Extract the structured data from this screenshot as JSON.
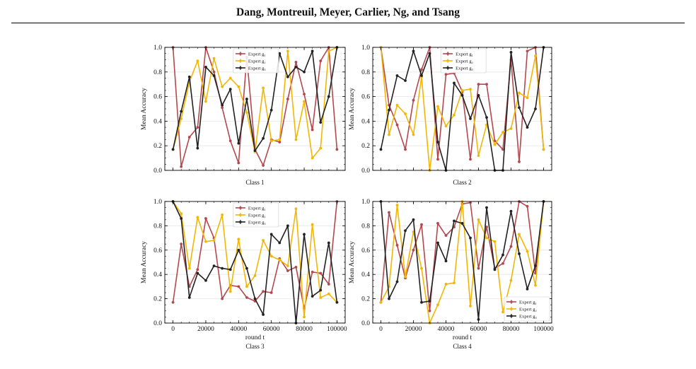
{
  "header": {
    "authors": "Dang, Montreuil, Meyer, Carlier, Ng, and Tsang"
  },
  "colors": {
    "g1": "#b5474e",
    "g2": "#f2b705",
    "g3": "#222222",
    "grid": "#e6e6e6"
  },
  "chart_data": [
    {
      "type": "line",
      "title": "Class 1",
      "xlabel": "",
      "ylabel": "Mean Accuracy",
      "xlim": [
        -5000,
        105000
      ],
      "ylim": [
        0,
        1
      ],
      "x_ticks": [
        0,
        20000,
        40000,
        60000,
        80000,
        100000
      ],
      "x_tick_labels": [
        "",
        "",
        "",
        "",
        "",
        ""
      ],
      "y_ticks": [
        0,
        0.2,
        0.4,
        0.6,
        0.8,
        1.0
      ],
      "y_tick_labels": [
        "0.0",
        "0.2",
        "0.4",
        "0.6",
        "0.8",
        "1.0"
      ],
      "grid": "horizontal",
      "legend": "top-center",
      "x": [
        0,
        5000,
        10000,
        15000,
        20000,
        25000,
        30000,
        35000,
        40000,
        45000,
        50000,
        55000,
        60000,
        65000,
        70000,
        75000,
        80000,
        85000,
        90000,
        95000,
        100000
      ],
      "series": [
        {
          "name": "Expert g₁",
          "color": "#b5474e",
          "values": [
            1.0,
            0.03,
            0.27,
            0.35,
            1.0,
            0.8,
            0.51,
            0.24,
            0.06,
            0.92,
            0.17,
            0.04,
            0.25,
            0.23,
            0.58,
            0.88,
            0.62,
            0.33,
            0.89,
            1.0,
            0.17
          ]
        },
        {
          "name": "Expert g₂",
          "color": "#f2b705",
          "values": [
            0.17,
            0.42,
            0.72,
            0.89,
            0.56,
            0.91,
            0.68,
            0.75,
            0.68,
            0.47,
            0.15,
            0.67,
            0.24,
            0.25,
            0.97,
            0.25,
            0.56,
            0.1,
            0.18,
            0.97,
            1.0
          ]
        },
        {
          "name": "Expert g₃",
          "color": "#222222",
          "values": [
            0.17,
            0.48,
            0.76,
            0.18,
            0.84,
            0.77,
            0.53,
            0.66,
            0.22,
            0.58,
            0.16,
            0.26,
            0.49,
            0.95,
            0.76,
            0.84,
            0.8,
            0.97,
            0.39,
            0.6,
            1.0
          ]
        }
      ]
    },
    {
      "type": "line",
      "title": "Class 2",
      "xlabel": "",
      "ylabel": "Mean Accuracy",
      "xlim": [
        -5000,
        105000
      ],
      "ylim": [
        0,
        1
      ],
      "x_ticks": [
        0,
        20000,
        40000,
        60000,
        80000,
        100000
      ],
      "x_tick_labels": [
        "",
        "",
        "",
        "",
        "",
        ""
      ],
      "y_ticks": [
        0,
        0.2,
        0.4,
        0.6,
        0.8,
        1.0
      ],
      "y_tick_labels": [
        "0.0",
        "0.2",
        "0.4",
        "0.6",
        "0.8",
        "1.0"
      ],
      "grid": "horizontal",
      "legend": "top-center",
      "x": [
        0,
        5000,
        10000,
        15000,
        20000,
        25000,
        30000,
        35000,
        40000,
        45000,
        50000,
        55000,
        60000,
        65000,
        70000,
        75000,
        80000,
        85000,
        90000,
        95000,
        100000
      ],
      "series": [
        {
          "name": "Expert g₁",
          "color": "#b5474e",
          "values": [
            1.0,
            0.53,
            0.37,
            0.17,
            0.57,
            0.82,
            1.0,
            0.09,
            0.78,
            0.79,
            0.64,
            0.09,
            0.7,
            0.7,
            0.24,
            0.17,
            0.9,
            0.07,
            0.97,
            1.0,
            0.17
          ]
        },
        {
          "name": "Expert g₂",
          "color": "#f2b705",
          "values": [
            1.0,
            0.29,
            0.53,
            0.46,
            0.29,
            0.76,
            0.0,
            0.52,
            0.36,
            0.45,
            0.65,
            0.66,
            0.12,
            0.37,
            0.21,
            0.31,
            0.34,
            0.63,
            0.59,
            0.93,
            0.17
          ]
        },
        {
          "name": "Expert g₃",
          "color": "#222222",
          "values": [
            0.17,
            0.49,
            0.77,
            0.73,
            0.97,
            0.77,
            0.95,
            0.23,
            0.0,
            0.71,
            0.61,
            0.42,
            0.61,
            0.43,
            0.0,
            0.0,
            0.96,
            0.51,
            0.35,
            0.5,
            1.0
          ]
        }
      ]
    },
    {
      "type": "line",
      "title": "Class 3",
      "xlabel": "round t",
      "ylabel": "Mean Accuracy",
      "xlim": [
        -5000,
        105000
      ],
      "ylim": [
        0,
        1
      ],
      "x_ticks": [
        0,
        20000,
        40000,
        60000,
        80000,
        100000
      ],
      "x_tick_labels": [
        "0",
        "20000",
        "40000",
        "60000",
        "80000",
        "100000"
      ],
      "y_ticks": [
        0,
        0.2,
        0.4,
        0.6,
        0.8,
        1.0
      ],
      "y_tick_labels": [
        "0.0",
        "0.2",
        "0.4",
        "0.6",
        "0.8",
        "1.0"
      ],
      "grid": "horizontal",
      "legend": "top-center",
      "x": [
        0,
        5000,
        10000,
        15000,
        20000,
        25000,
        30000,
        35000,
        40000,
        45000,
        50000,
        55000,
        60000,
        65000,
        70000,
        75000,
        80000,
        85000,
        90000,
        95000,
        100000
      ],
      "series": [
        {
          "name": "Expert g₁",
          "color": "#b5474e",
          "values": [
            0.17,
            0.65,
            0.3,
            0.44,
            0.86,
            0.7,
            0.2,
            0.31,
            0.3,
            0.21,
            0.18,
            0.26,
            0.25,
            0.53,
            0.43,
            0.46,
            0.12,
            0.42,
            0.41,
            0.32,
            1.0
          ]
        },
        {
          "name": "Expert g₂",
          "color": "#f2b705",
          "values": [
            1.0,
            0.9,
            0.45,
            0.87,
            0.67,
            0.68,
            0.89,
            0.26,
            0.69,
            0.3,
            0.39,
            0.68,
            0.55,
            0.52,
            0.47,
            0.94,
            0.05,
            0.81,
            0.21,
            0.24,
            0.17
          ]
        },
        {
          "name": "Expert g₃",
          "color": "#222222",
          "values": [
            1.0,
            0.86,
            0.21,
            0.41,
            0.35,
            0.47,
            0.45,
            0.44,
            0.6,
            0.45,
            0.2,
            0.07,
            0.73,
            0.66,
            0.8,
            0.0,
            0.73,
            0.22,
            0.27,
            0.66,
            0.17
          ]
        }
      ]
    },
    {
      "type": "line",
      "title": "Class 4",
      "xlabel": "round t",
      "ylabel": "Mean Accuracy",
      "xlim": [
        -5000,
        105000
      ],
      "ylim": [
        0,
        1
      ],
      "x_ticks": [
        0,
        20000,
        40000,
        60000,
        80000,
        100000
      ],
      "x_tick_labels": [
        "0",
        "20000",
        "40000",
        "60000",
        "80000",
        "100000"
      ],
      "y_ticks": [
        0,
        0.2,
        0.4,
        0.6,
        0.8,
        1.0
      ],
      "y_tick_labels": [
        "0.0",
        "0.2",
        "0.4",
        "0.6",
        "0.8",
        "1.0"
      ],
      "grid": "horizontal",
      "legend": "bottom-right",
      "x": [
        0,
        5000,
        10000,
        15000,
        20000,
        25000,
        30000,
        35000,
        40000,
        45000,
        50000,
        55000,
        60000,
        65000,
        70000,
        75000,
        80000,
        85000,
        90000,
        95000,
        100000
      ],
      "series": [
        {
          "name": "Expert g₁",
          "color": "#b5474e",
          "values": [
            0.17,
            0.91,
            0.64,
            0.37,
            0.6,
            0.81,
            0.1,
            0.82,
            0.72,
            0.79,
            0.98,
            0.99,
            0.45,
            0.79,
            0.45,
            0.49,
            0.63,
            1.0,
            0.96,
            0.41,
            1.0
          ]
        },
        {
          "name": "Expert g₂",
          "color": "#f2b705",
          "values": [
            0.17,
            0.3,
            0.97,
            0.38,
            0.75,
            0.45,
            0.0,
            0.15,
            0.32,
            0.33,
            1.0,
            0.14,
            0.85,
            0.7,
            0.67,
            0.09,
            0.35,
            0.73,
            0.59,
            0.31,
            1.0
          ]
        },
        {
          "name": "Expert g₃",
          "color": "#222222",
          "values": [
            1.0,
            0.2,
            0.34,
            0.76,
            0.85,
            0.17,
            0.18,
            0.66,
            0.51,
            0.84,
            0.82,
            0.7,
            0.03,
            0.95,
            0.44,
            0.56,
            0.92,
            0.57,
            0.28,
            0.47,
            1.0
          ]
        }
      ]
    }
  ]
}
